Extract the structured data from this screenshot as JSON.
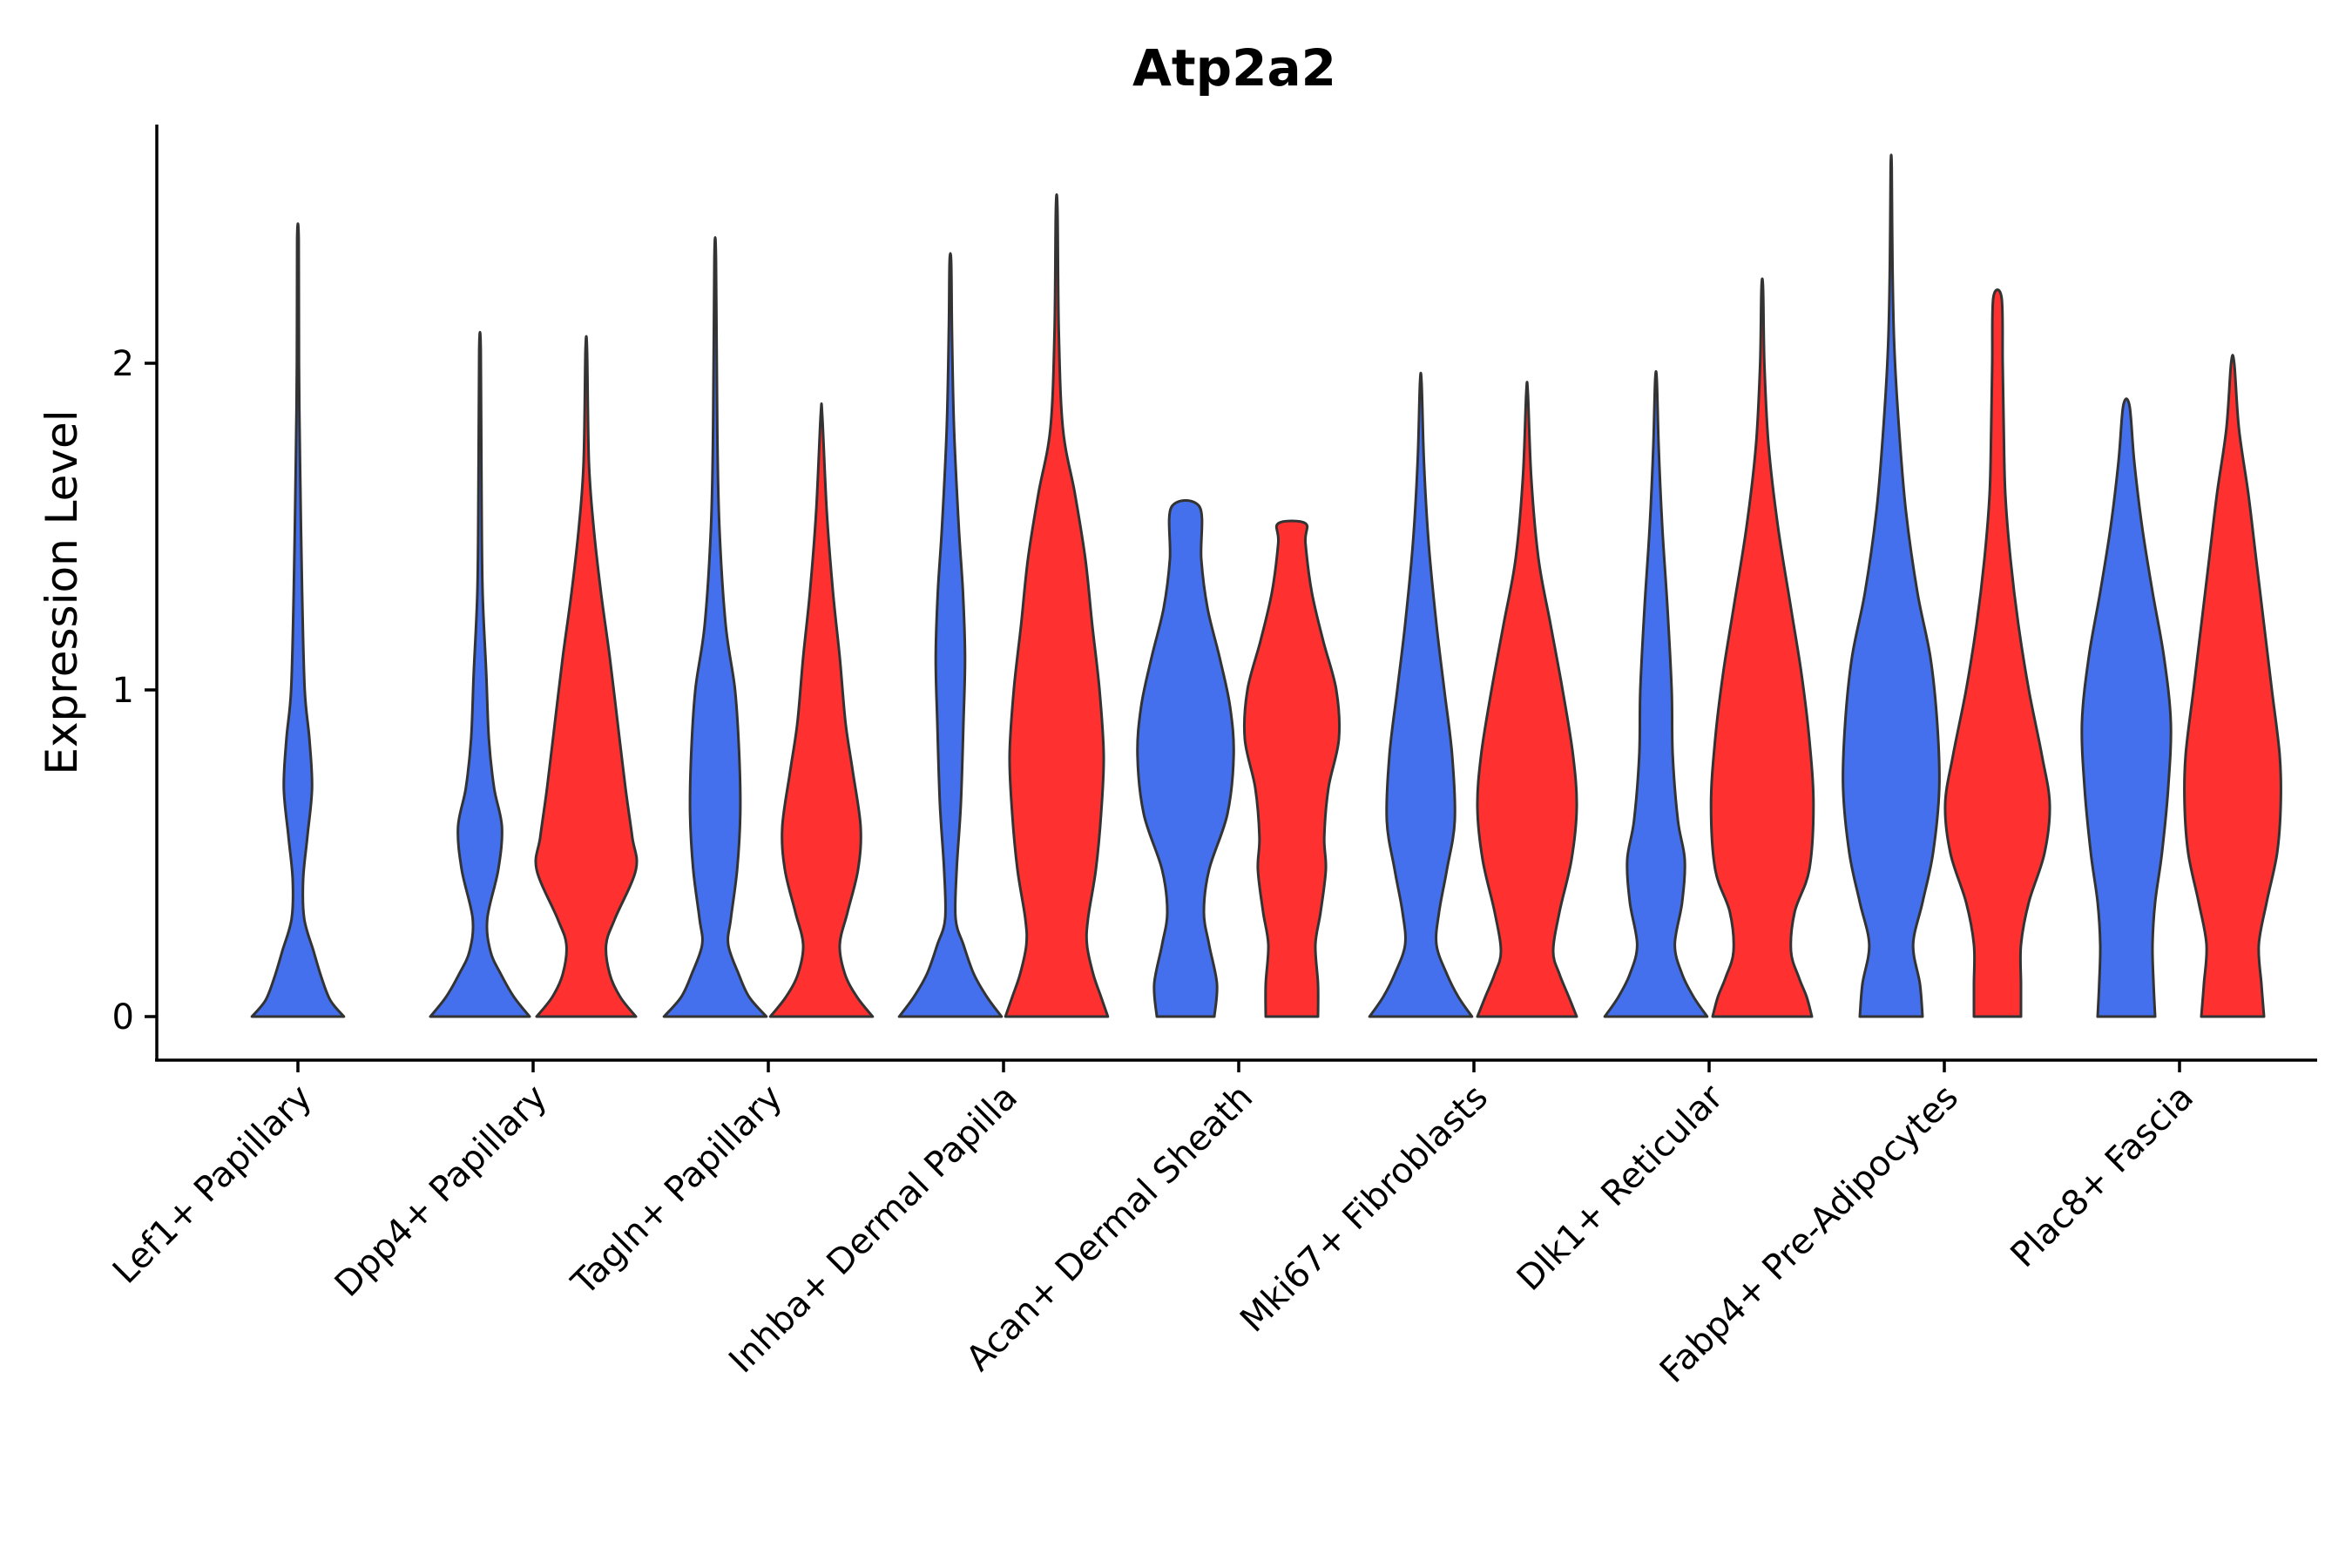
{
  "chart_data": {
    "type": "violin",
    "title": "Atp2a2",
    "xlabel": "",
    "ylabel": "Expression Level",
    "ylim": [
      -0.13,
      2.75
    ],
    "yticks": [
      0,
      1,
      2
    ],
    "categories": [
      "Lef1+ Papillary",
      "Dpp4+ Papillary",
      "Tagln+ Papillary",
      "Inhba+ Dermal Papilla",
      "Acan+ Dermal Sheath",
      "Mki67+ Fibroblasts",
      "Dlk1+ Reticular",
      "Fabp4+ Pre-Adipocytes",
      "Plac8+ Fascia"
    ],
    "series_colors": [
      "#4470ED",
      "#FF3030"
    ],
    "violins": [
      {
        "category": "Lef1+ Papillary",
        "series": 0,
        "max": 2.38,
        "profile": [
          [
            0,
            0.88
          ],
          [
            0.05,
            0.62
          ],
          [
            0.12,
            0.45
          ],
          [
            0.2,
            0.3
          ],
          [
            0.3,
            0.12
          ],
          [
            0.42,
            0.1
          ],
          [
            0.55,
            0.18
          ],
          [
            0.7,
            0.27
          ],
          [
            0.85,
            0.22
          ],
          [
            1.0,
            0.13
          ],
          [
            1.3,
            0.08
          ],
          [
            1.7,
            0.04
          ],
          [
            2.0,
            0.02
          ],
          [
            2.38,
            0.015
          ]
        ]
      },
      {
        "category": "Dpp4+ Papillary",
        "series": 0,
        "max": 2.04,
        "profile": [
          [
            0,
            0.95
          ],
          [
            0.06,
            0.65
          ],
          [
            0.13,
            0.4
          ],
          [
            0.2,
            0.2
          ],
          [
            0.3,
            0.14
          ],
          [
            0.45,
            0.35
          ],
          [
            0.58,
            0.42
          ],
          [
            0.7,
            0.27
          ],
          [
            0.85,
            0.17
          ],
          [
            1.05,
            0.12
          ],
          [
            1.3,
            0.05
          ],
          [
            1.6,
            0.03
          ],
          [
            2.04,
            0.015
          ]
        ]
      },
      {
        "category": "Dpp4+ Papillary",
        "series": 1,
        "max": 2.04,
        "profile": [
          [
            0,
            0.95
          ],
          [
            0.06,
            0.65
          ],
          [
            0.13,
            0.45
          ],
          [
            0.22,
            0.38
          ],
          [
            0.3,
            0.55
          ],
          [
            0.45,
            0.95
          ],
          [
            0.55,
            0.88
          ],
          [
            0.7,
            0.75
          ],
          [
            0.9,
            0.6
          ],
          [
            1.1,
            0.45
          ],
          [
            1.3,
            0.28
          ],
          [
            1.5,
            0.14
          ],
          [
            1.7,
            0.05
          ],
          [
            2.04,
            0.015
          ]
        ]
      },
      {
        "category": "Tagln+ Papillary",
        "series": 0,
        "max": 2.32,
        "profile": [
          [
            0,
            0.98
          ],
          [
            0.06,
            0.65
          ],
          [
            0.13,
            0.45
          ],
          [
            0.22,
            0.25
          ],
          [
            0.3,
            0.3
          ],
          [
            0.45,
            0.42
          ],
          [
            0.62,
            0.48
          ],
          [
            0.8,
            0.46
          ],
          [
            1.0,
            0.38
          ],
          [
            1.2,
            0.2
          ],
          [
            1.5,
            0.08
          ],
          [
            1.8,
            0.04
          ],
          [
            2.32,
            0.015
          ]
        ]
      },
      {
        "category": "Tagln+ Papillary",
        "series": 1,
        "max": 1.84,
        "profile": [
          [
            0,
            0.98
          ],
          [
            0.06,
            0.68
          ],
          [
            0.13,
            0.45
          ],
          [
            0.22,
            0.35
          ],
          [
            0.32,
            0.5
          ],
          [
            0.45,
            0.7
          ],
          [
            0.58,
            0.75
          ],
          [
            0.75,
            0.6
          ],
          [
            0.9,
            0.46
          ],
          [
            1.1,
            0.35
          ],
          [
            1.3,
            0.22
          ],
          [
            1.55,
            0.1
          ],
          [
            1.84,
            0.015
          ]
        ]
      },
      {
        "category": "Inhba+ Dermal Papilla",
        "series": 0,
        "max": 2.31,
        "profile": [
          [
            0,
            0.98
          ],
          [
            0.06,
            0.7
          ],
          [
            0.13,
            0.45
          ],
          [
            0.22,
            0.25
          ],
          [
            0.3,
            0.1
          ],
          [
            0.45,
            0.12
          ],
          [
            0.65,
            0.2
          ],
          [
            0.9,
            0.25
          ],
          [
            1.1,
            0.28
          ],
          [
            1.3,
            0.24
          ],
          [
            1.5,
            0.16
          ],
          [
            1.8,
            0.07
          ],
          [
            2.1,
            0.03
          ],
          [
            2.31,
            0.015
          ]
        ]
      },
      {
        "category": "Inhba+ Dermal Papilla",
        "series": 1,
        "max": 2.47,
        "profile": [
          [
            0,
            0.98
          ],
          [
            0.06,
            0.85
          ],
          [
            0.13,
            0.7
          ],
          [
            0.22,
            0.58
          ],
          [
            0.3,
            0.6
          ],
          [
            0.45,
            0.75
          ],
          [
            0.62,
            0.85
          ],
          [
            0.8,
            0.9
          ],
          [
            1.0,
            0.82
          ],
          [
            1.2,
            0.68
          ],
          [
            1.4,
            0.55
          ],
          [
            1.6,
            0.35
          ],
          [
            1.8,
            0.12
          ],
          [
            2.1,
            0.04
          ],
          [
            2.47,
            0.015
          ]
        ]
      },
      {
        "category": "Acan+ Dermal Sheath",
        "series": 0,
        "max": 1.56,
        "profile": [
          [
            0,
            0.55
          ],
          [
            0.1,
            0.6
          ],
          [
            0.22,
            0.45
          ],
          [
            0.32,
            0.35
          ],
          [
            0.45,
            0.45
          ],
          [
            0.62,
            0.8
          ],
          [
            0.8,
            0.92
          ],
          [
            0.95,
            0.85
          ],
          [
            1.1,
            0.65
          ],
          [
            1.25,
            0.42
          ],
          [
            1.4,
            0.3
          ],
          [
            1.56,
            0.27
          ]
        ]
      },
      {
        "category": "Acan+ Dermal Sheath",
        "series": 1,
        "max": 1.51,
        "profile": [
          [
            0,
            0.5
          ],
          [
            0.1,
            0.5
          ],
          [
            0.22,
            0.45
          ],
          [
            0.32,
            0.55
          ],
          [
            0.45,
            0.65
          ],
          [
            0.55,
            0.62
          ],
          [
            0.7,
            0.7
          ],
          [
            0.85,
            0.9
          ],
          [
            1.0,
            0.85
          ],
          [
            1.15,
            0.6
          ],
          [
            1.3,
            0.38
          ],
          [
            1.45,
            0.26
          ],
          [
            1.51,
            0.26
          ]
        ]
      },
      {
        "category": "Mki67+ Fibroblasts",
        "series": 0,
        "max": 1.94,
        "profile": [
          [
            0,
            0.98
          ],
          [
            0.06,
            0.72
          ],
          [
            0.13,
            0.5
          ],
          [
            0.22,
            0.3
          ],
          [
            0.32,
            0.35
          ],
          [
            0.45,
            0.5
          ],
          [
            0.6,
            0.65
          ],
          [
            0.8,
            0.6
          ],
          [
            1.0,
            0.45
          ],
          [
            1.2,
            0.3
          ],
          [
            1.45,
            0.15
          ],
          [
            1.7,
            0.06
          ],
          [
            1.94,
            0.015
          ]
        ]
      },
      {
        "category": "Mki67+ Fibroblasts",
        "series": 1,
        "max": 1.91,
        "profile": [
          [
            0,
            0.95
          ],
          [
            0.06,
            0.8
          ],
          [
            0.13,
            0.62
          ],
          [
            0.2,
            0.5
          ],
          [
            0.32,
            0.62
          ],
          [
            0.48,
            0.85
          ],
          [
            0.64,
            0.95
          ],
          [
            0.8,
            0.88
          ],
          [
            1.0,
            0.68
          ],
          [
            1.2,
            0.45
          ],
          [
            1.4,
            0.22
          ],
          [
            1.65,
            0.08
          ],
          [
            1.91,
            0.015
          ]
        ]
      },
      {
        "category": "Dlk1+ Reticular",
        "series": 0,
        "max": 1.95,
        "profile": [
          [
            0,
            0.98
          ],
          [
            0.06,
            0.72
          ],
          [
            0.13,
            0.5
          ],
          [
            0.22,
            0.36
          ],
          [
            0.35,
            0.5
          ],
          [
            0.48,
            0.55
          ],
          [
            0.6,
            0.42
          ],
          [
            0.8,
            0.32
          ],
          [
            1.0,
            0.3
          ],
          [
            1.25,
            0.22
          ],
          [
            1.5,
            0.12
          ],
          [
            1.75,
            0.05
          ],
          [
            1.95,
            0.015
          ]
        ]
      },
      {
        "category": "Dlk1+ Reticular",
        "series": 1,
        "max": 2.23,
        "profile": [
          [
            0,
            0.95
          ],
          [
            0.06,
            0.85
          ],
          [
            0.12,
            0.7
          ],
          [
            0.2,
            0.55
          ],
          [
            0.32,
            0.62
          ],
          [
            0.45,
            0.9
          ],
          [
            0.65,
            0.98
          ],
          [
            0.85,
            0.9
          ],
          [
            1.05,
            0.75
          ],
          [
            1.25,
            0.55
          ],
          [
            1.5,
            0.3
          ],
          [
            1.75,
            0.12
          ],
          [
            2.0,
            0.04
          ],
          [
            2.23,
            0.015
          ]
        ]
      },
      {
        "category": "Fabp4+ Pre-Adipocytes",
        "series": 0,
        "max": 2.6,
        "profile": [
          [
            0,
            0.6
          ],
          [
            0.1,
            0.55
          ],
          [
            0.22,
            0.42
          ],
          [
            0.35,
            0.6
          ],
          [
            0.5,
            0.8
          ],
          [
            0.7,
            0.92
          ],
          [
            0.9,
            0.88
          ],
          [
            1.1,
            0.75
          ],
          [
            1.3,
            0.5
          ],
          [
            1.55,
            0.28
          ],
          [
            1.8,
            0.15
          ],
          [
            2.05,
            0.06
          ],
          [
            2.3,
            0.025
          ],
          [
            2.6,
            0.01
          ]
        ]
      },
      {
        "category": "Fabp4+ Pre-Adipocytes",
        "series": 1,
        "max": 2.2,
        "profile": [
          [
            0,
            0.45
          ],
          [
            0.1,
            0.45
          ],
          [
            0.22,
            0.45
          ],
          [
            0.35,
            0.6
          ],
          [
            0.5,
            0.9
          ],
          [
            0.65,
            1.0
          ],
          [
            0.8,
            0.85
          ],
          [
            1.0,
            0.6
          ],
          [
            1.2,
            0.4
          ],
          [
            1.4,
            0.25
          ],
          [
            1.6,
            0.15
          ],
          [
            1.8,
            0.12
          ],
          [
            2.0,
            0.1
          ],
          [
            2.2,
            0.08
          ]
        ]
      },
      {
        "category": "Plac8+ Fascia",
        "series": 0,
        "max": 1.87,
        "profile": [
          [
            0,
            0.55
          ],
          [
            0.1,
            0.52
          ],
          [
            0.22,
            0.5
          ],
          [
            0.35,
            0.55
          ],
          [
            0.5,
            0.68
          ],
          [
            0.7,
            0.8
          ],
          [
            0.9,
            0.85
          ],
          [
            1.1,
            0.72
          ],
          [
            1.3,
            0.5
          ],
          [
            1.5,
            0.3
          ],
          [
            1.7,
            0.15
          ],
          [
            1.87,
            0.06
          ]
        ]
      },
      {
        "category": "Plac8+ Fascia",
        "series": 1,
        "max": 2.0,
        "profile": [
          [
            0,
            0.6
          ],
          [
            0.1,
            0.55
          ],
          [
            0.22,
            0.5
          ],
          [
            0.35,
            0.65
          ],
          [
            0.5,
            0.85
          ],
          [
            0.65,
            0.92
          ],
          [
            0.8,
            0.9
          ],
          [
            1.0,
            0.75
          ],
          [
            1.2,
            0.6
          ],
          [
            1.4,
            0.45
          ],
          [
            1.6,
            0.3
          ],
          [
            1.8,
            0.12
          ],
          [
            2.0,
            0.03
          ]
        ]
      }
    ]
  }
}
